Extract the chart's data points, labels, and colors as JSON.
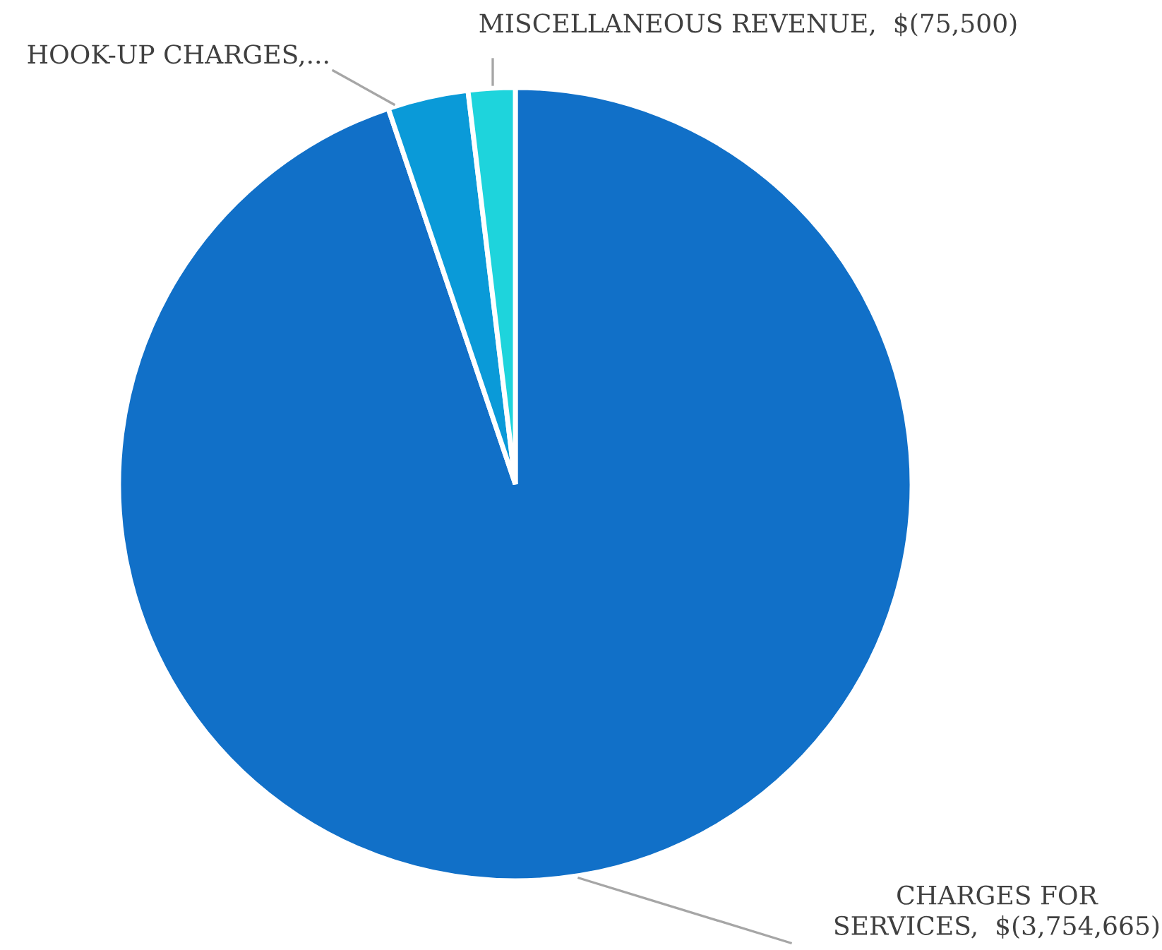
{
  "chart_data": {
    "type": "pie",
    "categories": [
      "CHARGES FOR SERVICES",
      "HOOK-UP CHARGES,...",
      "MISCELLANEOUS REVENUE"
    ],
    "values": [
      3754665,
      130000,
      75500
    ],
    "value_labels": [
      "$(3,754,665)",
      null,
      "$(75,500)"
    ],
    "colors": [
      "#1170c8",
      "#0a9ad8",
      "#1ed4dc"
    ]
  }
}
